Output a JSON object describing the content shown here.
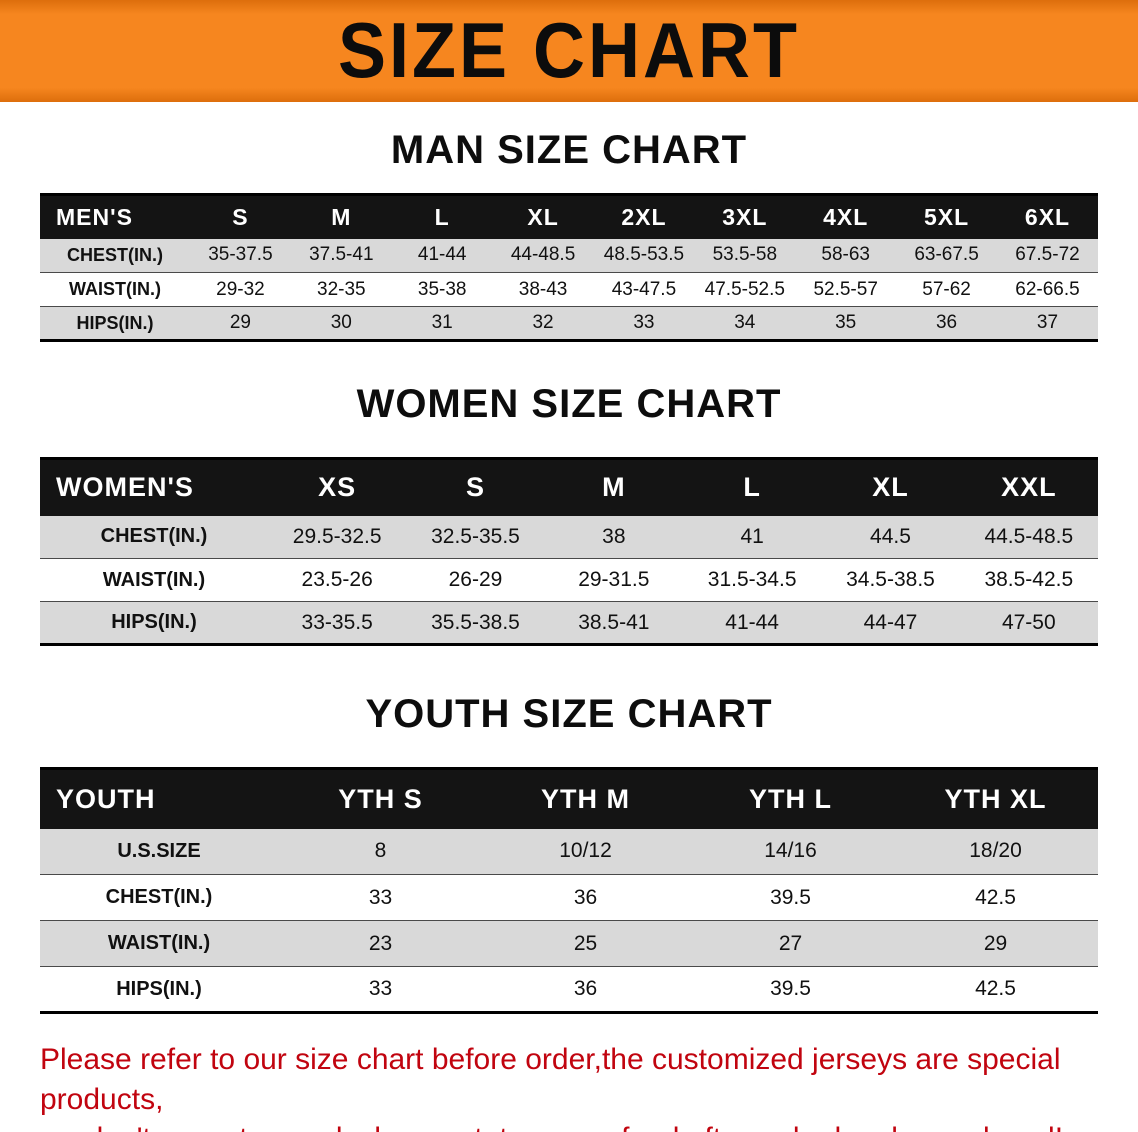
{
  "banner": {
    "title": "SIZE CHART",
    "bg_color": "#F6861F"
  },
  "sections": [
    {
      "title": "MAN SIZE CHART",
      "header_label": "MEN'S",
      "columns": [
        "S",
        "M",
        "L",
        "XL",
        "2XL",
        "3XL",
        "4XL",
        "5XL",
        "6XL"
      ],
      "rows": [
        {
          "label": "CHEST(IN.)",
          "values": [
            "35-37.5",
            "37.5-41",
            "41-44",
            "44-48.5",
            "48.5-53.5",
            "53.5-58",
            "58-63",
            "63-67.5",
            "67.5-72"
          ]
        },
        {
          "label": "WAIST(IN.)",
          "values": [
            "29-32",
            "32-35",
            "35-38",
            "38-43",
            "43-47.5",
            "47.5-52.5",
            "52.5-57",
            "57-62",
            "62-66.5"
          ]
        },
        {
          "label": "HIPS(IN.)",
          "values": [
            "29",
            "30",
            "31",
            "32",
            "33",
            "34",
            "35",
            "36",
            "37"
          ]
        }
      ]
    },
    {
      "title": "WOMEN SIZE CHART",
      "header_label": "WOMEN'S",
      "columns": [
        "XS",
        "S",
        "M",
        "L",
        "XL",
        "XXL"
      ],
      "rows": [
        {
          "label": "CHEST(IN.)",
          "values": [
            "29.5-32.5",
            "32.5-35.5",
            "38",
            "41",
            "44.5",
            "44.5-48.5"
          ]
        },
        {
          "label": "WAIST(IN.)",
          "values": [
            "23.5-26",
            "26-29",
            "29-31.5",
            "31.5-34.5",
            "34.5-38.5",
            "38.5-42.5"
          ]
        },
        {
          "label": "HIPS(IN.)",
          "values": [
            "33-35.5",
            "35.5-38.5",
            "38.5-41",
            "41-44",
            "44-47",
            "47-50"
          ]
        }
      ]
    },
    {
      "title": "YOUTH SIZE CHART",
      "header_label": "YOUTH",
      "columns": [
        "YTH S",
        "YTH M",
        "YTH L",
        "YTH XL"
      ],
      "rows": [
        {
          "label": "U.S.SIZE",
          "values": [
            "8",
            "10/12",
            "14/16",
            "18/20"
          ]
        },
        {
          "label": "CHEST(IN.)",
          "values": [
            "33",
            "36",
            "39.5",
            "42.5"
          ]
        },
        {
          "label": "WAIST(IN.)",
          "values": [
            "23",
            "25",
            "27",
            "29"
          ]
        },
        {
          "label": "HIPS(IN.)",
          "values": [
            "33",
            "36",
            "39.5",
            "42.5"
          ]
        }
      ]
    }
  ],
  "footer": {
    "lines": [
      "Please refer to our size chart before order,the customized jerseys are special products,",
      "we don't accept cancel, change, teturn or refund after order has been placed!"
    ]
  }
}
